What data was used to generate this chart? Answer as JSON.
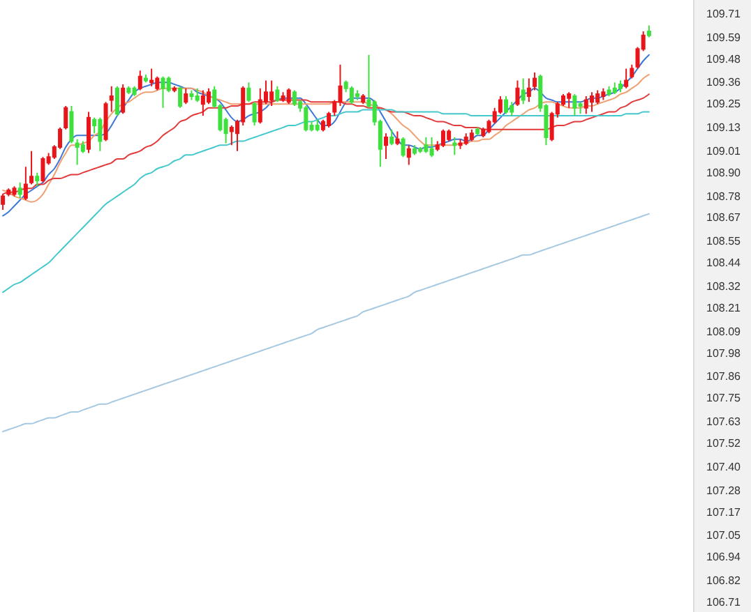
{
  "chart_data": {
    "type": "candlestick",
    "categories": [
      null,
      null,
      null,
      null,
      null,
      null,
      null,
      null,
      null,
      null,
      null,
      null,
      null,
      null,
      null,
      null,
      null,
      null,
      null,
      null,
      null,
      null,
      null,
      null,
      null,
      null,
      null,
      null,
      null,
      null,
      null,
      null,
      null,
      null,
      null,
      null,
      null,
      null,
      null,
      null,
      null,
      null,
      null,
      null,
      null,
      null,
      null,
      null,
      null,
      null,
      null,
      null,
      null,
      null,
      null,
      null,
      null,
      null,
      null,
      null,
      null,
      null,
      null,
      null,
      null,
      null,
      null,
      null,
      null,
      null,
      null,
      null,
      null,
      null,
      null,
      null,
      null,
      null,
      null,
      null,
      null,
      null,
      null,
      null,
      null,
      null,
      null,
      null,
      null,
      null,
      null,
      null,
      null,
      null,
      null,
      null,
      null,
      null,
      null,
      null,
      null,
      null,
      null,
      null,
      null,
      null,
      null,
      null,
      null,
      null,
      null,
      null,
      null,
      null
    ],
    "ohlc": [
      [
        108.74,
        108.79,
        108.71,
        108.78
      ],
      [
        108.79,
        108.82,
        108.78,
        108.81
      ],
      [
        108.79,
        108.83,
        108.78,
        108.82
      ],
      [
        108.82,
        108.85,
        108.77,
        108.79
      ],
      [
        108.77,
        108.93,
        108.76,
        108.84
      ],
      [
        108.85,
        109.01,
        108.84,
        108.88
      ],
      [
        108.88,
        108.9,
        108.83,
        108.86
      ],
      [
        108.86,
        108.98,
        108.85,
        108.97
      ],
      [
        108.95,
        109.0,
        108.94,
        108.98
      ],
      [
        108.98,
        109.04,
        108.97,
        109.03
      ],
      [
        109.03,
        109.13,
        109.02,
        109.12
      ],
      [
        109.13,
        109.24,
        109.12,
        109.23
      ],
      [
        109.21,
        109.24,
        109.05,
        109.06
      ],
      [
        109.05,
        109.07,
        108.94,
        109.03
      ],
      [
        109.04,
        109.06,
        109.0,
        109.01
      ],
      [
        109.02,
        109.21,
        109.0,
        109.18
      ],
      [
        109.17,
        109.18,
        109.1,
        109.14
      ],
      [
        109.17,
        109.18,
        109.01,
        109.06
      ],
      [
        109.07,
        109.26,
        109.06,
        109.25
      ],
      [
        109.27,
        109.34,
        109.21,
        109.29
      ],
      [
        109.33,
        109.34,
        109.19,
        109.2
      ],
      [
        109.21,
        109.35,
        109.2,
        109.33
      ],
      [
        109.33,
        109.34,
        109.3,
        109.31
      ],
      [
        109.33,
        109.34,
        109.29,
        109.3
      ],
      [
        109.33,
        109.42,
        109.32,
        109.39
      ],
      [
        109.38,
        109.4,
        109.36,
        109.37
      ],
      [
        109.36,
        109.43,
        109.34,
        109.37
      ],
      [
        109.33,
        109.39,
        109.32,
        109.38
      ],
      [
        109.38,
        109.39,
        109.23,
        109.33
      ],
      [
        109.38,
        109.39,
        109.31,
        109.32
      ],
      [
        109.32,
        109.34,
        109.31,
        109.33
      ],
      [
        109.33,
        109.34,
        109.23,
        109.24
      ],
      [
        109.26,
        109.33,
        109.25,
        109.3
      ],
      [
        109.3,
        109.32,
        109.27,
        109.29
      ],
      [
        109.29,
        109.33,
        109.26,
        109.27
      ],
      [
        109.25,
        109.32,
        109.19,
        109.29
      ],
      [
        109.26,
        109.33,
        109.25,
        109.31
      ],
      [
        109.32,
        109.34,
        109.23,
        109.24
      ],
      [
        109.24,
        109.25,
        109.11,
        109.12
      ],
      [
        109.17,
        109.18,
        109.05,
        109.1
      ],
      [
        109.11,
        109.14,
        109.04,
        109.13
      ],
      [
        109.1,
        109.17,
        109.01,
        109.16
      ],
      [
        109.16,
        109.34,
        109.14,
        109.33
      ],
      [
        109.33,
        109.36,
        109.26,
        109.27
      ],
      [
        109.25,
        109.26,
        109.14,
        109.16
      ],
      [
        109.16,
        109.33,
        109.15,
        109.27
      ],
      [
        109.26,
        109.37,
        109.25,
        109.31
      ],
      [
        109.27,
        109.37,
        109.24,
        109.31
      ],
      [
        109.32,
        109.34,
        109.26,
        109.27
      ],
      [
        109.27,
        109.31,
        109.26,
        109.29
      ],
      [
        109.26,
        109.33,
        109.25,
        109.32
      ],
      [
        109.31,
        109.32,
        109.24,
        109.25
      ],
      [
        109.26,
        109.27,
        109.21,
        109.23
      ],
      [
        109.23,
        109.24,
        109.11,
        109.12
      ],
      [
        109.14,
        109.16,
        109.11,
        109.12
      ],
      [
        109.14,
        109.17,
        109.11,
        109.12
      ],
      [
        109.12,
        109.17,
        109.11,
        109.16
      ],
      [
        109.14,
        109.21,
        109.13,
        109.2
      ],
      [
        109.21,
        109.27,
        109.19,
        109.26
      ],
      [
        109.26,
        109.45,
        109.24,
        109.34
      ],
      [
        109.36,
        109.37,
        109.31,
        109.33
      ],
      [
        109.33,
        109.34,
        109.25,
        109.26
      ],
      [
        109.3,
        109.32,
        109.27,
        109.29
      ],
      [
        109.26,
        109.3,
        109.25,
        109.29
      ],
      [
        109.27,
        109.5,
        109.23,
        109.24
      ],
      [
        109.26,
        109.27,
        109.14,
        109.16
      ],
      [
        109.16,
        109.17,
        108.93,
        109.02
      ],
      [
        109.04,
        109.1,
        108.97,
        109.08
      ],
      [
        109.08,
        109.12,
        109.04,
        109.05
      ],
      [
        109.05,
        109.11,
        109.04,
        109.07
      ],
      [
        109.07,
        109.08,
        108.98,
        108.99
      ],
      [
        108.98,
        109.04,
        108.94,
        109.02
      ],
      [
        109.02,
        109.04,
        108.99,
        109.0
      ],
      [
        109.02,
        109.03,
        109.0,
        109.01
      ],
      [
        109.04,
        109.08,
        109.0,
        109.01
      ],
      [
        109.02,
        109.08,
        108.98,
        108.99
      ],
      [
        109.02,
        109.06,
        109.01,
        109.04
      ],
      [
        109.04,
        109.12,
        109.03,
        109.11
      ],
      [
        109.07,
        109.12,
        109.06,
        109.11
      ],
      [
        109.05,
        109.08,
        108.99,
        109.04
      ],
      [
        109.04,
        109.07,
        109.02,
        109.05
      ],
      [
        109.05,
        109.1,
        109.04,
        109.08
      ],
      [
        109.07,
        109.12,
        109.06,
        109.1
      ],
      [
        109.12,
        109.13,
        109.09,
        109.1
      ],
      [
        109.09,
        109.13,
        109.08,
        109.12
      ],
      [
        109.11,
        109.17,
        109.1,
        109.16
      ],
      [
        109.16,
        109.23,
        109.15,
        109.21
      ],
      [
        109.21,
        109.29,
        109.2,
        109.27
      ],
      [
        109.27,
        109.29,
        109.2,
        109.21
      ],
      [
        109.24,
        109.26,
        109.19,
        109.21
      ],
      [
        109.25,
        109.37,
        109.24,
        109.33
      ],
      [
        109.32,
        109.38,
        109.25,
        109.27
      ],
      [
        109.29,
        109.38,
        109.26,
        109.33
      ],
      [
        109.34,
        109.41,
        109.32,
        109.38
      ],
      [
        109.39,
        109.4,
        109.21,
        109.23
      ],
      [
        109.24,
        109.25,
        109.04,
        109.08
      ],
      [
        109.07,
        109.21,
        109.06,
        109.2
      ],
      [
        109.2,
        109.26,
        109.18,
        109.25
      ],
      [
        109.25,
        109.3,
        109.24,
        109.29
      ],
      [
        109.28,
        109.31,
        109.23,
        109.3
      ],
      [
        109.29,
        109.3,
        109.19,
        109.23
      ],
      [
        109.25,
        109.26,
        109.2,
        109.24
      ],
      [
        109.23,
        109.29,
        109.2,
        109.27
      ],
      [
        109.26,
        109.31,
        109.21,
        109.29
      ],
      [
        109.26,
        109.32,
        109.25,
        109.3
      ],
      [
        109.29,
        109.33,
        109.27,
        109.31
      ],
      [
        109.32,
        109.34,
        109.29,
        109.3
      ],
      [
        109.33,
        109.36,
        109.3,
        109.31
      ],
      [
        109.35,
        109.37,
        109.31,
        109.33
      ],
      [
        109.34,
        109.43,
        109.33,
        109.37
      ],
      [
        109.39,
        109.45,
        109.38,
        109.43
      ],
      [
        109.44,
        109.54,
        109.43,
        109.53
      ],
      [
        109.53,
        109.62,
        109.52,
        109.6
      ],
      [
        109.62,
        109.65,
        109.59,
        109.6
      ]
    ],
    "colors": [
      "#e8161b",
      "#e8161b",
      "#e8161b",
      "#3ee03e",
      "#e8161b",
      "#e8161b",
      "#3ee03e",
      "#e8161b",
      "#e8161b",
      "#e8161b",
      "#e8161b",
      "#e8161b",
      "#3ee03e",
      "#3ee03e",
      "#3ee03e",
      "#e8161b",
      "#3ee03e",
      "#3ee03e",
      "#e8161b",
      "#e8161b",
      "#3ee03e",
      "#e8161b",
      "#3ee03e",
      "#3ee03e",
      "#e8161b",
      "#3ee03e",
      "#e8161b",
      "#e8161b",
      "#3ee03e",
      "#3ee03e",
      "#e8161b",
      "#3ee03e",
      "#e8161b",
      "#3ee03e",
      "#3ee03e",
      "#e8161b",
      "#e8161b",
      "#3ee03e",
      "#3ee03e",
      "#3ee03e",
      "#e8161b",
      "#e8161b",
      "#e8161b",
      "#3ee03e",
      "#3ee03e",
      "#e8161b",
      "#e8161b",
      "#e8161b",
      "#3ee03e",
      "#e8161b",
      "#e8161b",
      "#3ee03e",
      "#3ee03e",
      "#3ee03e",
      "#3ee03e",
      "#3ee03e",
      "#e8161b",
      "#e8161b",
      "#e8161b",
      "#e8161b",
      "#3ee03e",
      "#3ee03e",
      "#3ee03e",
      "#e8161b",
      "#3ee03e",
      "#3ee03e",
      "#3ee03e",
      "#e8161b",
      "#3ee03e",
      "#e8161b",
      "#3ee03e",
      "#e8161b",
      "#3ee03e",
      "#3ee03e",
      "#3ee03e",
      "#3ee03e",
      "#e8161b",
      "#e8161b",
      "#e8161b",
      "#3ee03e",
      "#e8161b",
      "#e8161b",
      "#e8161b",
      "#3ee03e",
      "#e8161b",
      "#e8161b",
      "#e8161b",
      "#e8161b",
      "#3ee03e",
      "#3ee03e",
      "#e8161b",
      "#3ee03e",
      "#e8161b",
      "#e8161b",
      "#3ee03e",
      "#3ee03e",
      "#e8161b",
      "#e8161b",
      "#e8161b",
      "#e8161b",
      "#3ee03e",
      "#3ee03e",
      "#e8161b",
      "#e8161b",
      "#e8161b",
      "#e8161b",
      "#3ee03e",
      "#3ee03e",
      "#3ee03e",
      "#e8161b",
      "#e8161b",
      "#e8161b",
      "#e8161b",
      "#3ee03e"
    ],
    "series": [
      {
        "type": "line",
        "color": "#3c78d8",
        "values": [
          108.68,
          108.7,
          108.73,
          108.76,
          108.79,
          108.81,
          108.83,
          108.85,
          108.89,
          108.92,
          108.97,
          109.03,
          109.07,
          109.09,
          109.09,
          109.09,
          109.09,
          109.09,
          109.1,
          109.14,
          109.19,
          109.23,
          109.27,
          109.31,
          109.33,
          109.34,
          109.35,
          109.36,
          109.36,
          109.36,
          109.35,
          109.34,
          109.33,
          109.33,
          109.31,
          109.3,
          109.29,
          109.28,
          109.26,
          109.22,
          109.18,
          109.16,
          109.17,
          109.19,
          109.2,
          109.21,
          109.23,
          109.26,
          109.27,
          109.28,
          109.28,
          109.28,
          109.28,
          109.25,
          109.21,
          109.17,
          109.14,
          109.14,
          109.16,
          109.21,
          109.26,
          109.28,
          109.28,
          109.28,
          109.28,
          109.26,
          109.21,
          109.16,
          109.11,
          109.07,
          109.04,
          109.04,
          109.03,
          109.02,
          109.03,
          109.03,
          109.04,
          109.05,
          109.06,
          109.07,
          109.07,
          109.06,
          109.07,
          109.09,
          109.09,
          109.12,
          109.15,
          109.18,
          109.21,
          109.24,
          109.27,
          109.3,
          109.31,
          109.33,
          109.31,
          109.28,
          109.27,
          109.26,
          109.26,
          109.26,
          109.26,
          109.26,
          109.27,
          109.28,
          109.28,
          109.29,
          109.3,
          109.31,
          109.33,
          109.36,
          109.39,
          109.43,
          109.47,
          109.5
        ]
      },
      {
        "type": "line",
        "color": "#f0a070",
        "values": [
          108.81,
          108.8,
          108.78,
          108.77,
          108.76,
          108.75,
          108.76,
          108.79,
          108.84,
          108.89,
          108.95,
          109.0,
          109.04,
          109.04,
          109.05,
          109.06,
          109.09,
          109.11,
          109.16,
          109.2,
          109.23,
          109.25,
          109.26,
          109.28,
          109.3,
          109.31,
          109.31,
          109.32,
          109.33,
          109.33,
          109.33,
          109.33,
          109.33,
          109.33,
          109.32,
          109.31,
          109.29,
          109.28,
          109.27,
          109.26,
          109.25,
          109.25,
          109.25,
          109.25,
          109.25,
          109.25,
          109.25,
          109.25,
          109.25,
          109.25,
          109.25,
          109.25,
          109.25,
          109.25,
          109.25,
          109.25,
          109.25,
          109.25,
          109.26,
          109.26,
          109.26,
          109.26,
          109.26,
          109.26,
          109.25,
          109.24,
          109.23,
          109.22,
          109.2,
          109.17,
          109.14,
          109.12,
          109.09,
          109.06,
          109.04,
          109.04,
          109.04,
          109.04,
          109.04,
          109.04,
          109.05,
          109.05,
          109.06,
          109.06,
          109.07,
          109.07,
          109.09,
          109.11,
          109.14,
          109.16,
          109.18,
          109.2,
          109.22,
          109.23,
          109.25,
          109.26,
          109.26,
          109.25,
          109.24,
          109.23,
          109.23,
          109.23,
          109.24,
          109.24,
          109.25,
          109.26,
          109.27,
          109.28,
          109.3,
          109.31,
          109.33,
          109.35,
          109.38,
          109.4
        ]
      },
      {
        "type": "line",
        "color": "#e23a3a",
        "values": [
          108.79,
          108.8,
          108.8,
          108.81,
          108.82,
          108.82,
          108.84,
          108.84,
          108.86,
          108.87,
          108.87,
          108.88,
          108.89,
          108.89,
          108.9,
          108.91,
          108.92,
          108.93,
          108.94,
          108.95,
          108.97,
          108.97,
          108.99,
          109.0,
          109.01,
          109.03,
          109.04,
          109.06,
          109.09,
          109.11,
          109.13,
          109.16,
          109.17,
          109.19,
          109.2,
          109.21,
          109.23,
          109.23,
          109.23,
          109.23,
          109.24,
          109.24,
          109.25,
          109.25,
          109.26,
          109.26,
          109.26,
          109.26,
          109.27,
          109.27,
          109.27,
          109.27,
          109.27,
          109.27,
          109.26,
          109.26,
          109.26,
          109.26,
          109.26,
          109.26,
          109.25,
          109.25,
          109.24,
          109.24,
          109.23,
          109.23,
          109.23,
          109.22,
          109.21,
          109.21,
          109.21,
          109.2,
          109.19,
          109.19,
          109.18,
          109.17,
          109.16,
          109.16,
          109.15,
          109.14,
          109.14,
          109.13,
          109.13,
          109.13,
          109.12,
          109.12,
          109.12,
          109.12,
          109.12,
          109.12,
          109.12,
          109.12,
          109.12,
          109.12,
          109.12,
          109.12,
          109.13,
          109.14,
          109.14,
          109.15,
          109.16,
          109.16,
          109.17,
          109.18,
          109.19,
          109.2,
          109.21,
          109.21,
          109.23,
          109.24,
          109.26,
          109.27,
          109.28,
          109.3
        ]
      },
      {
        "type": "line",
        "color": "#45c8cc",
        "values": [
          108.29,
          108.31,
          108.33,
          108.34,
          108.36,
          108.38,
          108.4,
          108.42,
          108.44,
          108.47,
          108.5,
          108.53,
          108.56,
          108.59,
          108.62,
          108.65,
          108.68,
          108.71,
          108.74,
          108.76,
          108.78,
          108.8,
          108.82,
          108.84,
          108.87,
          108.89,
          108.9,
          108.92,
          108.93,
          108.94,
          108.96,
          108.97,
          108.99,
          108.99,
          109.0,
          109.01,
          109.02,
          109.03,
          109.04,
          109.04,
          109.05,
          109.06,
          109.06,
          109.07,
          109.08,
          109.09,
          109.1,
          109.11,
          109.12,
          109.13,
          109.14,
          109.14,
          109.15,
          109.16,
          109.16,
          109.17,
          109.18,
          109.19,
          109.19,
          109.2,
          109.21,
          109.21,
          109.21,
          109.22,
          109.22,
          109.22,
          109.22,
          109.22,
          109.22,
          109.21,
          109.21,
          109.21,
          109.21,
          109.21,
          109.21,
          109.21,
          109.21,
          109.2,
          109.2,
          109.2,
          109.2,
          109.2,
          109.19,
          109.19,
          109.19,
          109.19,
          109.19,
          109.19,
          109.19,
          109.19,
          109.19,
          109.19,
          109.19,
          109.19,
          109.19,
          109.19,
          109.19,
          109.19,
          109.19,
          109.19,
          109.19,
          109.19,
          109.19,
          109.19,
          109.19,
          109.19,
          109.19,
          109.19,
          109.19,
          109.2,
          109.2,
          109.2,
          109.21,
          109.21
        ]
      },
      {
        "type": "line",
        "color": "#a6c8e0",
        "values": [
          107.58,
          107.59,
          107.6,
          107.61,
          107.62,
          107.62,
          107.63,
          107.64,
          107.65,
          107.65,
          107.66,
          107.67,
          107.68,
          107.68,
          107.69,
          107.7,
          107.71,
          107.72,
          107.72,
          107.73,
          107.74,
          107.75,
          107.76,
          107.77,
          107.78,
          107.79,
          107.8,
          107.81,
          107.82,
          107.83,
          107.84,
          107.85,
          107.86,
          107.87,
          107.88,
          107.89,
          107.9,
          107.91,
          107.92,
          107.93,
          107.94,
          107.95,
          107.96,
          107.97,
          107.98,
          107.99,
          108.0,
          108.01,
          108.02,
          108.03,
          108.04,
          108.05,
          108.06,
          108.07,
          108.08,
          108.1,
          108.11,
          108.12,
          108.13,
          108.14,
          108.15,
          108.16,
          108.17,
          108.19,
          108.2,
          108.21,
          108.22,
          108.23,
          108.24,
          108.25,
          108.26,
          108.27,
          108.29,
          108.3,
          108.31,
          108.32,
          108.33,
          108.34,
          108.35,
          108.36,
          108.37,
          108.38,
          108.39,
          108.4,
          108.41,
          108.42,
          108.43,
          108.44,
          108.45,
          108.46,
          108.47,
          108.48,
          108.48,
          108.49,
          108.5,
          108.51,
          108.52,
          108.53,
          108.54,
          108.55,
          108.56,
          108.57,
          108.58,
          108.59,
          108.6,
          108.61,
          108.62,
          108.63,
          108.64,
          108.65,
          108.66,
          108.67,
          108.68,
          108.69
        ]
      }
    ],
    "ylim": [
      106.66,
      109.78
    ],
    "yticks": [
      109.71,
      109.59,
      109.48,
      109.36,
      109.25,
      109.13,
      109.01,
      {
        "value": 108.9,
        "label": "108.90"
      },
      108.78,
      108.67,
      108.55,
      108.44,
      108.32,
      108.21,
      108.09,
      107.98,
      107.86,
      107.75,
      107.63,
      107.52,
      {
        "value": 107.4,
        "label": "107.40"
      },
      107.28,
      107.17,
      107.05,
      106.94,
      106.82,
      106.71
    ],
    "tick_labels": "y"
  }
}
